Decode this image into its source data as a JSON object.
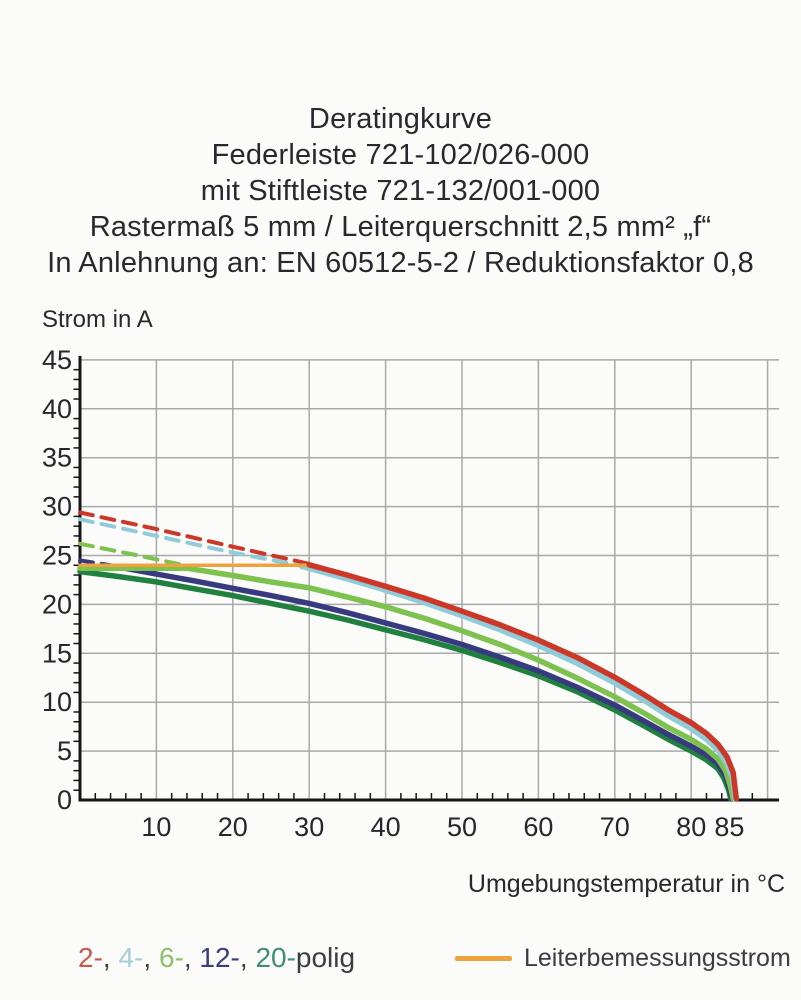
{
  "title": {
    "lines": [
      "Deratingkurve",
      "Federleiste 721-102/026-000",
      "mit Stiftleiste 721-132/001-000",
      "Rastermaß 5 mm / Leiterquerschnitt 2,5 mm² „f“",
      "In Anlehnung an: EN 60512-5-2 / Reduktionsfaktor 0,8"
    ]
  },
  "chart_data": {
    "type": "line",
    "title": "Deratingkurve",
    "ylabel": "Strom in A",
    "xlabel": "Umgebungstemperatur in °C",
    "xlim": [
      0,
      91.5
    ],
    "ylim": [
      0,
      45
    ],
    "grid": true,
    "x_gridlines": [
      10,
      20,
      30,
      40,
      50,
      60,
      70,
      80,
      90
    ],
    "x_tick_labels": [
      10,
      20,
      30,
      40,
      50,
      60,
      70,
      80,
      85
    ],
    "x_minor_tick_step": 2,
    "y_gridlines": [
      5,
      10,
      15,
      20,
      25,
      30,
      35,
      40,
      45
    ],
    "y_tick_labels": [
      0,
      5,
      10,
      15,
      20,
      25,
      30,
      35,
      40,
      45
    ],
    "y_minor_tick_step": 1,
    "colors": {
      "grid": "#a9a9a9",
      "axis": "#161616",
      "tick_text": "#26262c"
    },
    "series": [
      {
        "name": "2-polig-dashed",
        "color": "#cd3728",
        "style": "dashed",
        "width": 4,
        "points": [
          [
            0,
            29.4
          ],
          [
            10,
            27.7
          ],
          [
            20,
            25.9
          ],
          [
            30,
            24.15
          ]
        ]
      },
      {
        "name": "4-polig-dashed",
        "color": "#8fcbd8",
        "style": "dashed",
        "width": 4,
        "points": [
          [
            0,
            28.7
          ],
          [
            10,
            27.0
          ],
          [
            20,
            25.3
          ],
          [
            29,
            23.95
          ]
        ]
      },
      {
        "name": "6-polig-dashed",
        "color": "#7dc14f",
        "style": "dashed",
        "width": 4,
        "points": [
          [
            0,
            26.2
          ],
          [
            7,
            25.1
          ],
          [
            14,
            23.95
          ]
        ]
      },
      {
        "name": "12-polig-dashed",
        "color": "#383a80",
        "style": "dashed",
        "width": 4,
        "points": [
          [
            0,
            24.5
          ],
          [
            4.5,
            23.95
          ]
        ]
      },
      {
        "name": "20-polig",
        "color": "#20803f",
        "style": "solid",
        "width": 5.5,
        "points": [
          [
            0,
            23.35
          ],
          [
            5,
            22.85
          ],
          [
            10,
            22.3
          ],
          [
            15,
            21.6
          ],
          [
            20,
            20.9
          ],
          [
            25,
            20.1
          ],
          [
            30,
            19.3
          ],
          [
            35,
            18.4
          ],
          [
            40,
            17.4
          ],
          [
            45,
            16.4
          ],
          [
            50,
            15.3
          ],
          [
            55,
            14.05
          ],
          [
            60,
            12.7
          ],
          [
            65,
            11.1
          ],
          [
            70,
            9.2
          ],
          [
            74,
            7.5
          ],
          [
            77,
            6.2
          ],
          [
            80,
            5.0
          ],
          [
            82,
            4.1
          ],
          [
            83.5,
            3.2
          ],
          [
            84.3,
            2.2
          ],
          [
            84.9,
            1.0
          ],
          [
            85.2,
            0.1
          ]
        ]
      },
      {
        "name": "12-polig",
        "color": "#383a80",
        "style": "solid",
        "width": 5.5,
        "points": [
          [
            4.5,
            23.9
          ],
          [
            10,
            23.1
          ],
          [
            15,
            22.4
          ],
          [
            20,
            21.65
          ],
          [
            25,
            20.9
          ],
          [
            30,
            20.1
          ],
          [
            35,
            19.15
          ],
          [
            40,
            18.1
          ],
          [
            45,
            17.05
          ],
          [
            50,
            15.9
          ],
          [
            55,
            14.6
          ],
          [
            60,
            13.2
          ],
          [
            65,
            11.55
          ],
          [
            70,
            9.7
          ],
          [
            74,
            8.0
          ],
          [
            77,
            6.7
          ],
          [
            80,
            5.5
          ],
          [
            82,
            4.6
          ],
          [
            83.5,
            3.7
          ],
          [
            84.4,
            2.6
          ],
          [
            85.0,
            1.3
          ],
          [
            85.35,
            0.1
          ]
        ]
      },
      {
        "name": "6-polig",
        "color": "#7dc14f",
        "style": "solid",
        "width": 5.5,
        "points": [
          [
            0,
            23.7
          ],
          [
            14,
            23.7
          ],
          [
            20,
            22.95
          ],
          [
            25,
            22.3
          ],
          [
            30,
            21.7
          ],
          [
            35,
            20.75
          ],
          [
            40,
            19.75
          ],
          [
            45,
            18.6
          ],
          [
            50,
            17.3
          ],
          [
            55,
            15.9
          ],
          [
            60,
            14.3
          ],
          [
            65,
            12.5
          ],
          [
            70,
            10.55
          ],
          [
            74,
            8.8
          ],
          [
            77,
            7.4
          ],
          [
            80,
            6.2
          ],
          [
            82,
            5.2
          ],
          [
            83.5,
            4.2
          ],
          [
            84.5,
            3.0
          ],
          [
            85.1,
            1.5
          ],
          [
            85.5,
            0.1
          ]
        ]
      },
      {
        "name": "4-polig",
        "color": "#8fcbd8",
        "style": "solid",
        "width": 5.5,
        "points": [
          [
            29,
            23.9
          ],
          [
            35,
            22.6
          ],
          [
            40,
            21.45
          ],
          [
            45,
            20.2
          ],
          [
            50,
            18.85
          ],
          [
            55,
            17.4
          ],
          [
            60,
            15.8
          ],
          [
            65,
            14.0
          ],
          [
            70,
            11.95
          ],
          [
            74,
            10.1
          ],
          [
            77,
            8.6
          ],
          [
            80,
            7.3
          ],
          [
            82,
            6.2
          ],
          [
            83.5,
            5.1
          ],
          [
            84.6,
            3.8
          ],
          [
            85.4,
            2.3
          ],
          [
            85.75,
            0.1
          ]
        ]
      },
      {
        "name": "Leiterbemessungsstrom",
        "color": "#efa33f",
        "style": "solid",
        "width": 3.5,
        "points": [
          [
            0,
            24
          ],
          [
            30.5,
            24
          ]
        ]
      },
      {
        "name": "2-polig",
        "color": "#cd3728",
        "style": "solid",
        "width": 5.5,
        "points": [
          [
            30,
            24.05
          ],
          [
            35,
            23.0
          ],
          [
            40,
            21.85
          ],
          [
            45,
            20.65
          ],
          [
            50,
            19.3
          ],
          [
            55,
            17.9
          ],
          [
            60,
            16.35
          ],
          [
            65,
            14.6
          ],
          [
            70,
            12.55
          ],
          [
            74,
            10.7
          ],
          [
            77,
            9.2
          ],
          [
            80,
            7.9
          ],
          [
            82,
            6.8
          ],
          [
            83.5,
            5.7
          ],
          [
            84.7,
            4.4
          ],
          [
            85.5,
            2.8
          ],
          [
            85.9,
            0.1
          ]
        ]
      }
    ]
  },
  "legend": {
    "poles": [
      {
        "label": "2-",
        "color": "#c6584e"
      },
      {
        "label": "4-",
        "color": "#a5cdd3"
      },
      {
        "label": "6-",
        "color": "#8cc06a"
      },
      {
        "label": "12-",
        "color": "#3a3c7e"
      },
      {
        "label": "20-",
        "color": "#3f8e78"
      }
    ],
    "separator": ", ",
    "poles_suffix": "polig",
    "suffix_color": "#3c3c45",
    "rated": {
      "label": "Leiterbemessungsstrom",
      "color": "#efa33f"
    }
  }
}
